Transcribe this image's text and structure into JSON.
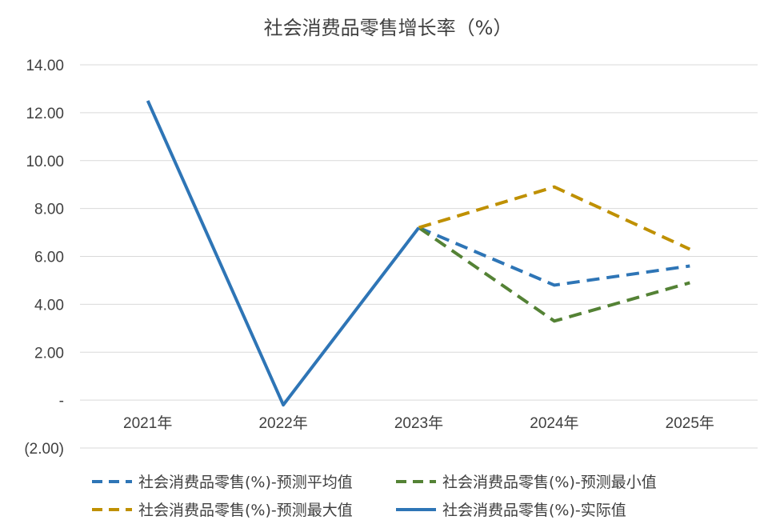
{
  "chart_data": {
    "type": "line",
    "title": "社会消费品零售增长率（%）",
    "xlabel": "",
    "ylabel": "",
    "categories": [
      "2021年",
      "2022年",
      "2023年",
      "2024年",
      "2025年"
    ],
    "ylim": [
      -2,
      14
    ],
    "yticks": [
      14,
      12,
      10,
      8,
      6,
      4,
      2,
      0,
      -2
    ],
    "ytick_labels": [
      "14.00",
      "12.00",
      "10.00",
      "8.00",
      "6.00",
      "4.00",
      "2.00",
      "-",
      "(2.00)"
    ],
    "grid": true,
    "legend_position": "bottom",
    "series": [
      {
        "name": "社会消费品零售(%)-预测平均值",
        "values": [
          null,
          null,
          7.2,
          4.8,
          5.6
        ],
        "color": "#2E75B6",
        "dash": "dashed"
      },
      {
        "name": "社会消费品零售(%)-预测最小值",
        "values": [
          null,
          null,
          7.2,
          3.3,
          4.9
        ],
        "color": "#548235",
        "dash": "dashed"
      },
      {
        "name": "社会消费品零售(%)-预测最大值",
        "values": [
          null,
          null,
          7.2,
          8.9,
          6.3
        ],
        "color": "#BF9000",
        "dash": "dashed"
      },
      {
        "name": "社会消费品零售(%)-实际值",
        "values": [
          12.5,
          -0.2,
          7.2,
          null,
          null
        ],
        "color": "#2E75B6",
        "dash": "solid"
      }
    ]
  }
}
